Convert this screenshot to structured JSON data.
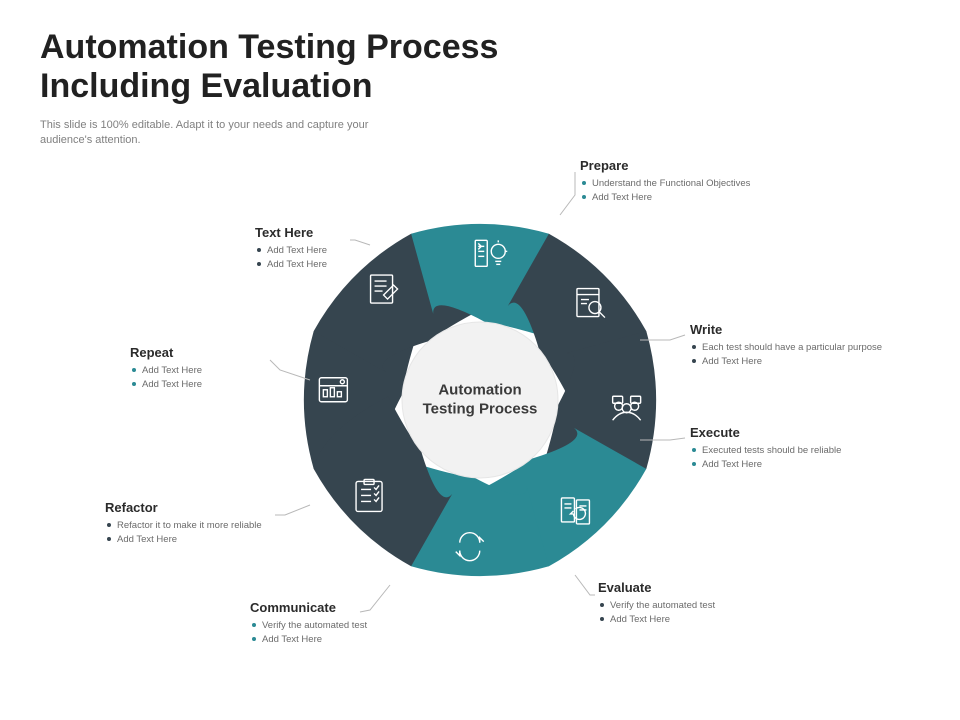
{
  "title": "Automation Testing Process Including Evaluation",
  "subtitle": "This slide is 100% editable. Adapt it to your needs and capture your audience's attention.",
  "center_label": "Automation Testing Process",
  "colors": {
    "dark": "#36454f",
    "teal": "#2b8a94",
    "bg": "#ffffff",
    "circle_fill": "#f2f2f2",
    "title_text": "#212121",
    "subtitle_text": "#808080",
    "callout_title": "#2b2b2b",
    "callout_body": "#6b6b6b"
  },
  "diagram": {
    "type": "radial-petal",
    "petal_count": 8,
    "radius_outer": 180,
    "radius_inner": 78,
    "alternating_colors": [
      "#36454f",
      "#2b8a94"
    ]
  },
  "segments": [
    {
      "key": "prepare",
      "title": "Prepare",
      "bullets": [
        "Understand the Functional Objectives",
        "Add Text Here"
      ],
      "color": "#36454f",
      "icon": "dashboard"
    },
    {
      "key": "write",
      "title": "Write",
      "bullets": [
        "Each test should have a particular purpose",
        "Add Text Here"
      ],
      "color": "#36454f",
      "icon": "write"
    },
    {
      "key": "execute",
      "title": "Execute",
      "bullets": [
        "Executed tests should be reliable",
        "Add Text Here"
      ],
      "color": "#2b8a94",
      "icon": "bulb"
    },
    {
      "key": "evaluate",
      "title": "Evaluate",
      "bullets": [
        "Verify the automated test",
        "Add Text Here"
      ],
      "color": "#36454f",
      "icon": "magnify"
    },
    {
      "key": "comm",
      "title": "Communicate",
      "bullets": [
        "Verify the automated test",
        "Add Text Here"
      ],
      "color": "#36454f",
      "icon": "people"
    },
    {
      "key": "refactor",
      "title": "Refactor",
      "bullets": [
        "Refactor it to make it more reliable",
        "Add Text Here"
      ],
      "color": "#2b8a94",
      "icon": "docs"
    },
    {
      "key": "repeat",
      "title": "Repeat",
      "bullets": [
        "Add Text Here",
        "Add Text Here"
      ],
      "color": "#2b8a94",
      "icon": "cycle"
    },
    {
      "key": "texthere",
      "title": "Text Here",
      "bullets": [
        "Add Text Here",
        "Add Text Here"
      ],
      "color": "#36454f",
      "icon": "checklist"
    }
  ]
}
